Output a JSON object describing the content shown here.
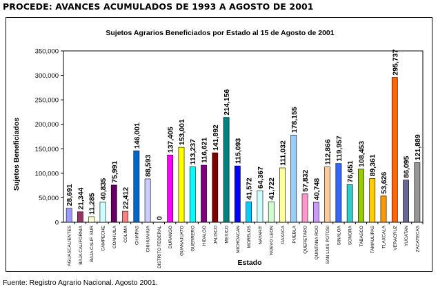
{
  "header": {
    "title": "PROCEDE: AVANCES ACUMULADOS DE 1993 A AGOSTO DE 2001"
  },
  "footer": {
    "source": "Fuente: Registro Agrario Nacional. Agosto 2001."
  },
  "chart_data": {
    "type": "bar",
    "title": "Sujetos Agrarios Beneficiados por Estado al 15 de Agosto de 2001",
    "xlabel": "Estado",
    "ylabel": "Sujetos Beneficiados",
    "ylim": [
      0,
      350000
    ],
    "yticks": [
      0,
      50000,
      100000,
      150000,
      200000,
      250000,
      300000,
      350000
    ],
    "ytick_labels": [
      "0",
      "50,000",
      "100,000",
      "150,000",
      "200,000",
      "250,000",
      "300,000",
      "350,000"
    ],
    "grid": false,
    "categories": [
      "AGUASCALIENTES",
      "BAJA CALIFORNIA",
      "BAJA CALIF. SUR",
      "CAMPECHE",
      "COAHUILA",
      "COLIMA",
      "CHIAPAS",
      "CHIHUAHUA",
      "DISTRITO FEDERAL",
      "DURANGO",
      "GUANAJUATO",
      "GUERRERO",
      "HIDALGO",
      "JALISCO",
      "MEXICO",
      "MICHOACAN",
      "MORELOS",
      "NAYARIT",
      "NUEVO LEON",
      "OAXACA",
      "PUEBLA",
      "QUERETARO",
      "QUINTANA ROO",
      "SAN LUIS POTOSI",
      "SINALOA",
      "SONORA",
      "TABASCO",
      "TAMAULIPAS",
      "TLAXCALA",
      "VERACRUZ",
      "YUCATAN",
      "ZACATECAS"
    ],
    "values": [
      28691,
      21344,
      11285,
      40835,
      75991,
      22412,
      146001,
      88593,
      0,
      137405,
      153001,
      113237,
      116621,
      141892,
      214156,
      115093,
      41572,
      64367,
      41722,
      111032,
      178155,
      57832,
      40748,
      112866,
      119957,
      76651,
      108453,
      89361,
      53626,
      295737,
      86095,
      121889
    ],
    "value_labels": [
      "28,691",
      "21,344",
      "11,285",
      "40,835",
      "75,991",
      "22,412",
      "146,001",
      "88,593",
      "0",
      "137,405",
      "153,001",
      "113,237",
      "116,621",
      "141,892",
      "214,156",
      "115,093",
      "41,572",
      "64,367",
      "41,722",
      "111,032",
      "178,155",
      "57,832",
      "40,748",
      "112,866",
      "119,957",
      "76,651",
      "108,453",
      "89,361",
      "53,626",
      "295,737",
      "86,095",
      "121,889"
    ],
    "colors": [
      "#9c9cff",
      "#993366",
      "#ffffcc",
      "#ccffff",
      "#660066",
      "#ff8080",
      "#0066cc",
      "#ccccff",
      "#000080",
      "#ff00ff",
      "#ffff00",
      "#00ffff",
      "#800080",
      "#800000",
      "#008080",
      "#0000ff",
      "#00ccff",
      "#ccffff",
      "#ccffcc",
      "#ffff99",
      "#99ccff",
      "#ff99cc",
      "#cc99ff",
      "#ffcc99",
      "#3366ff",
      "#33cccc",
      "#99cc00",
      "#ffcc00",
      "#ff9900",
      "#ff6600",
      "#666699",
      "#969696"
    ]
  }
}
